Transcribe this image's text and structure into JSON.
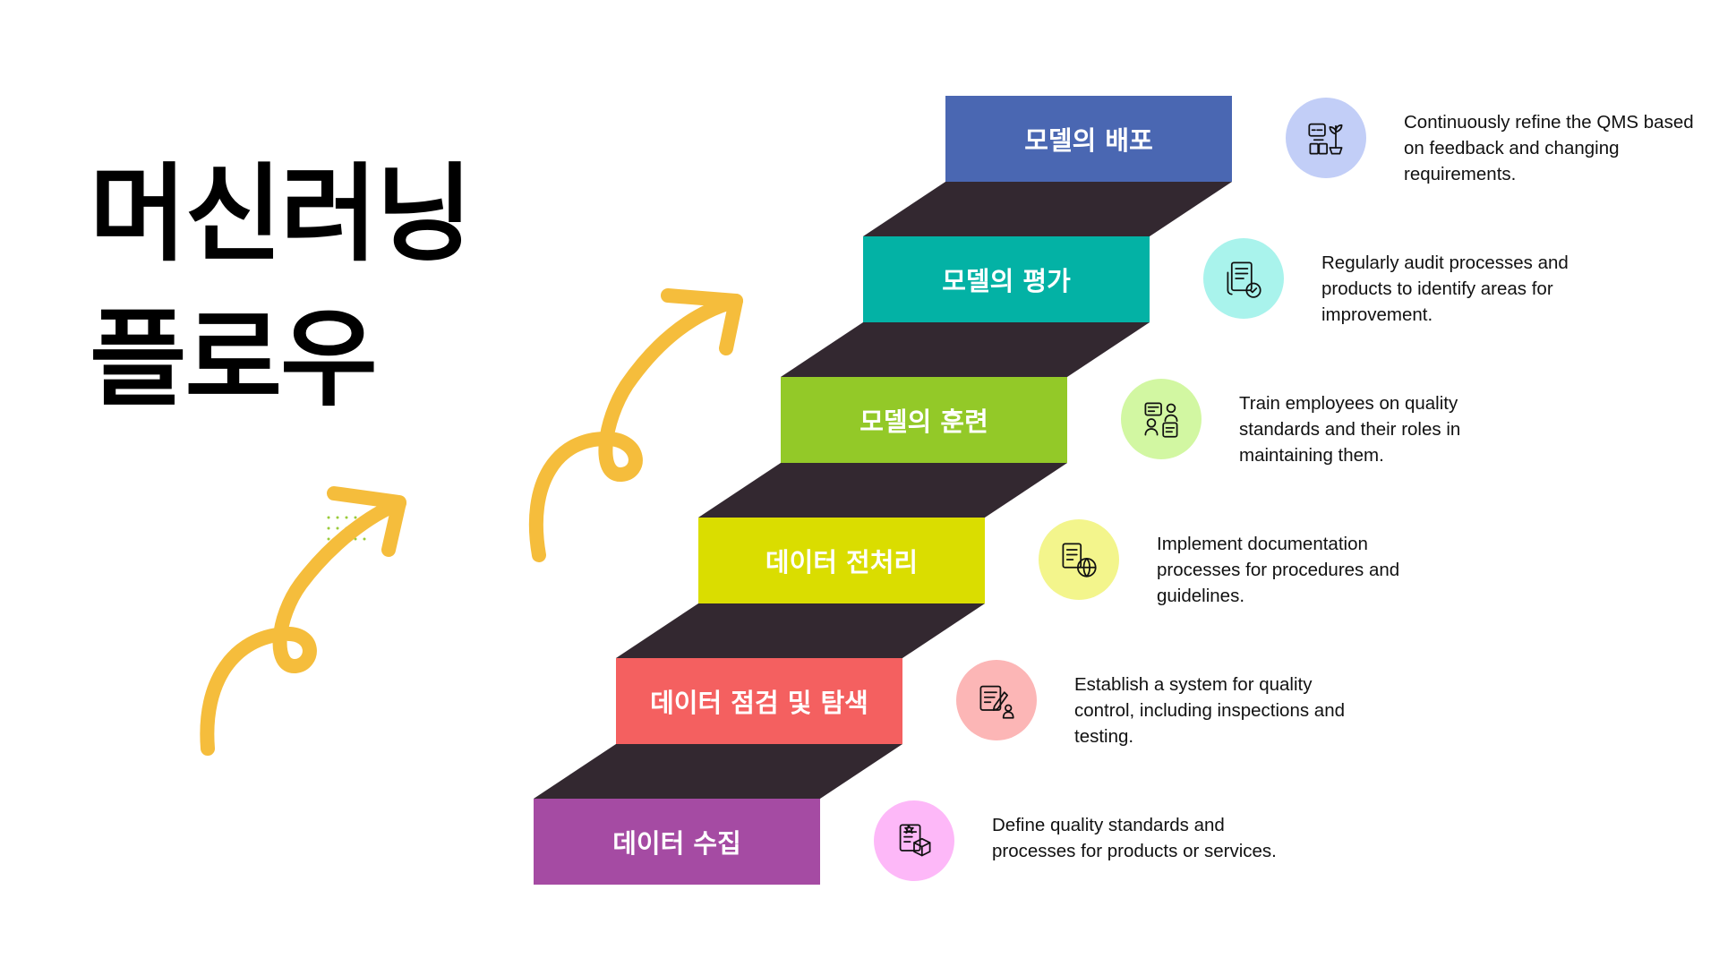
{
  "title": {
    "line1": "머신러닝",
    "line2": "플로우"
  },
  "steps": [
    {
      "label": "데이터 수집",
      "color": "#a54ba3",
      "icon": "box-document-icon",
      "icon_bg": "#fdb8f8",
      "description": "Define quality standards and processes for products or services."
    },
    {
      "label": "데이터 점검 및 탐색",
      "color": "#f46060",
      "icon": "inspection-person-icon",
      "icon_bg": "#fcb6b6",
      "description": "Establish a system for quality control, including inspections and testing."
    },
    {
      "label": "데이터 전처리",
      "color": "#dadd00",
      "icon": "document-globe-icon",
      "icon_bg": "#f3f58c",
      "description": "Implement documentation processes for procedures and guidelines."
    },
    {
      "label": "모델의 훈련",
      "color": "#93c928",
      "icon": "training-people-icon",
      "icon_bg": "#d2f7a2",
      "description": "Train employees on quality standards and their roles in maintaining them."
    },
    {
      "label": "모델의 평가",
      "color": "#03b2a5",
      "icon": "audit-checklist-icon",
      "icon_bg": "#a9f3ec",
      "description": "Regularly audit processes and products to identify areas for improvement."
    },
    {
      "label": "모델의 배포",
      "color": "#4a67b2",
      "icon": "deploy-growth-icon",
      "icon_bg": "#c2cef7",
      "description": "Continuously refine the QMS based on feedback and changing requirements."
    }
  ],
  "colors": {
    "riser": "#332830",
    "arrow": "#f5bd3c",
    "text": "#111111"
  }
}
